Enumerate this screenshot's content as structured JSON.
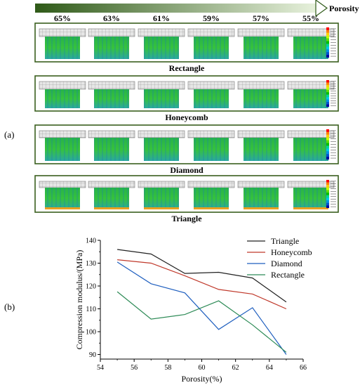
{
  "panel_a": {
    "label": "(a)",
    "axis_label": "Porosity",
    "porosity_labels": [
      "65%",
      "63%",
      "61%",
      "59%",
      "57%",
      "55%"
    ],
    "rows": [
      {
        "name": "Rectangle"
      },
      {
        "name": "Honeycomb"
      },
      {
        "name": "Diamond"
      },
      {
        "name": "Triangle"
      }
    ],
    "legend_colors": [
      "#ff0000",
      "#ff8000",
      "#ffd000",
      "#c8ff00",
      "#60e000",
      "#00c000",
      "#00d890",
      "#00c8e8",
      "#0090e8",
      "#0050d0",
      "#0000a0"
    ],
    "frame_color": "#3a5f1e",
    "arrow_color": "#3f6b22"
  },
  "panel_b": {
    "label": "(b)"
  },
  "chart_data": {
    "type": "line",
    "xlabel": "Porosity(%)",
    "ylabel": "Compression modulus/(MPa)",
    "xlim": [
      54,
      66
    ],
    "ylim": [
      88,
      140
    ],
    "xticks": [
      54,
      56,
      58,
      60,
      62,
      64,
      66
    ],
    "yticks": [
      90,
      100,
      110,
      120,
      130,
      140
    ],
    "grid": false,
    "legend_position": "top-right",
    "x": [
      55,
      57,
      59,
      61,
      63,
      65
    ],
    "series": [
      {
        "name": "Triangle",
        "color": "#222222",
        "values": [
          136,
          134,
          125.5,
          126,
          123.5,
          113
        ]
      },
      {
        "name": "Honeycomb",
        "color": "#c0392b",
        "values": [
          131.5,
          130,
          124.5,
          118.5,
          116.5,
          110
        ]
      },
      {
        "name": "Diamond",
        "color": "#1f5fbf",
        "values": [
          130.5,
          121,
          117,
          101,
          110.5,
          90
        ]
      },
      {
        "name": "Rectangle",
        "color": "#2e8b57",
        "values": [
          117.5,
          105.5,
          107.5,
          113.5,
          103,
          91
        ]
      }
    ]
  }
}
